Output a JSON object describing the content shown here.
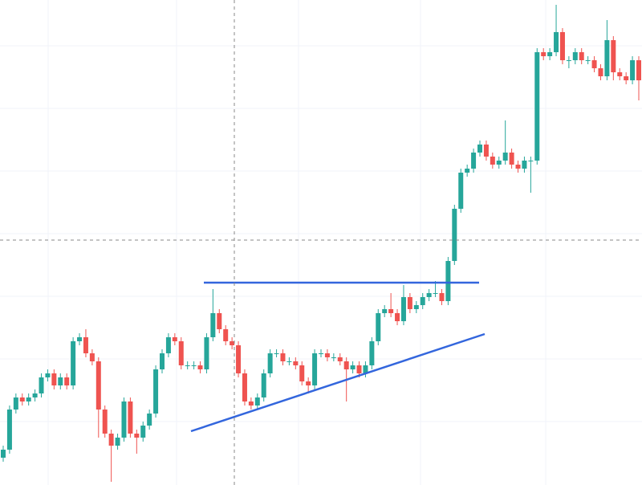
{
  "chart_data": {
    "type": "candlestick",
    "up_color": "#26a69a",
    "down_color": "#ef5350",
    "ylim": [
      0,
      604
    ],
    "yticks": [
      79,
      157,
      235,
      313,
      391,
      469,
      547
    ],
    "grid": true,
    "open": [
      34,
      44,
      94,
      109,
      104,
      109,
      114,
      134,
      139,
      124,
      134,
      124,
      179,
      184,
      164,
      154,
      94,
      64,
      49,
      59,
      104,
      64,
      59,
      74,
      89,
      144,
      164,
      184,
      179,
      149,
      149,
      149,
      144,
      184,
      214,
      194,
      179,
      174,
      139,
      104,
      99,
      109,
      139,
      164,
      164,
      154,
      154,
      149,
      129,
      124,
      164,
      164,
      159,
      159,
      154,
      144,
      149,
      139,
      149,
      179,
      214,
      219,
      214,
      204,
      234,
      219,
      224,
      234,
      239,
      239,
      229,
      279,
      344,
      389,
      394,
      414,
      424,
      409,
      399,
      404,
      414,
      399,
      394,
      404,
      404,
      539,
      534,
      539,
      564,
      529,
      529,
      539,
      529,
      529,
      519,
      509,
      554,
      514,
      509,
      504,
      529
    ],
    "high": [
      49,
      99,
      114,
      114,
      114,
      119,
      139,
      144,
      144,
      139,
      139,
      184,
      189,
      194,
      169,
      159,
      99,
      69,
      64,
      109,
      109,
      69,
      79,
      94,
      149,
      169,
      189,
      189,
      184,
      154,
      154,
      154,
      189,
      244,
      219,
      199,
      184,
      179,
      144,
      109,
      114,
      144,
      169,
      169,
      169,
      159,
      159,
      154,
      134,
      169,
      169,
      169,
      164,
      164,
      159,
      154,
      154,
      154,
      184,
      219,
      224,
      239,
      219,
      249,
      239,
      229,
      239,
      244,
      254,
      244,
      284,
      349,
      394,
      399,
      419,
      429,
      429,
      414,
      409,
      454,
      419,
      404,
      409,
      409,
      544,
      544,
      544,
      598,
      569,
      534,
      544,
      544,
      534,
      534,
      524,
      579,
      559,
      519,
      514,
      534,
      534
    ],
    "low": [
      29,
      39,
      89,
      99,
      99,
      104,
      109,
      129,
      119,
      119,
      119,
      119,
      174,
      159,
      149,
      59,
      59,
      4,
      44,
      54,
      59,
      39,
      54,
      69,
      84,
      139,
      159,
      174,
      144,
      144,
      144,
      139,
      139,
      179,
      189,
      174,
      169,
      134,
      99,
      94,
      94,
      104,
      134,
      159,
      149,
      149,
      144,
      124,
      114,
      119,
      159,
      154,
      154,
      149,
      104,
      139,
      134,
      134,
      144,
      174,
      209,
      209,
      199,
      199,
      214,
      214,
      219,
      229,
      234,
      224,
      224,
      274,
      339,
      384,
      389,
      409,
      404,
      394,
      394,
      399,
      394,
      389,
      389,
      364,
      399,
      529,
      529,
      534,
      524,
      519,
      524,
      524,
      524,
      514,
      504,
      504,
      504,
      504,
      499,
      499,
      479
    ],
    "close": [
      44,
      94,
      109,
      104,
      109,
      114,
      134,
      139,
      124,
      134,
      124,
      179,
      184,
      164,
      154,
      94,
      64,
      49,
      59,
      104,
      64,
      59,
      74,
      89,
      144,
      164,
      184,
      179,
      149,
      149,
      149,
      144,
      184,
      214,
      194,
      179,
      174,
      139,
      104,
      99,
      109,
      139,
      164,
      164,
      154,
      154,
      149,
      129,
      124,
      164,
      164,
      159,
      159,
      154,
      144,
      149,
      139,
      149,
      179,
      214,
      219,
      214,
      204,
      234,
      219,
      224,
      234,
      239,
      239,
      229,
      279,
      344,
      389,
      394,
      414,
      424,
      409,
      399,
      404,
      414,
      399,
      394,
      404,
      404,
      539,
      534,
      539,
      564,
      529,
      529,
      539,
      529,
      529,
      519,
      509,
      554,
      514,
      509,
      504,
      529,
      504
    ],
    "trendlines": [
      {
        "color": "#3366dd",
        "values": [
          252,
          252
        ]
      },
      {
        "color": "#3366dd",
        "values": [
          67,
          188
        ]
      }
    ]
  }
}
